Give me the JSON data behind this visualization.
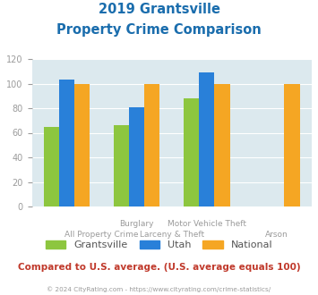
{
  "title_line1": "2019 Grantsville",
  "title_line2": "Property Crime Comparison",
  "cat_labels_line1": [
    "All Property Crime",
    "Burglary",
    "Motor Vehicle Theft",
    "Arson"
  ],
  "cat_labels_line2": [
    "",
    "Larceny & Theft",
    "",
    ""
  ],
  "series": {
    "Grantsville": [
      65,
      66,
      88,
      0
    ],
    "Utah": [
      103,
      81,
      109,
      0
    ],
    "National": [
      100,
      100,
      100,
      100
    ]
  },
  "colors": {
    "Grantsville": "#8dc63f",
    "Utah": "#2980d9",
    "National": "#f5a623"
  },
  "ylim": [
    0,
    120
  ],
  "yticks": [
    0,
    20,
    40,
    60,
    80,
    100,
    120
  ],
  "background_color": "#dce9ee",
  "title_color": "#1a6dad",
  "axis_label_color": "#9b9b9b",
  "legend_label_color": "#555555",
  "footer_text": "Compared to U.S. average. (U.S. average equals 100)",
  "footer_color": "#c0392b",
  "copyright_text": "© 2024 CityRating.com - https://www.cityrating.com/crime-statistics/",
  "copyright_color": "#9b9b9b",
  "fig_width": 3.55,
  "fig_height": 3.3,
  "dpi": 100
}
